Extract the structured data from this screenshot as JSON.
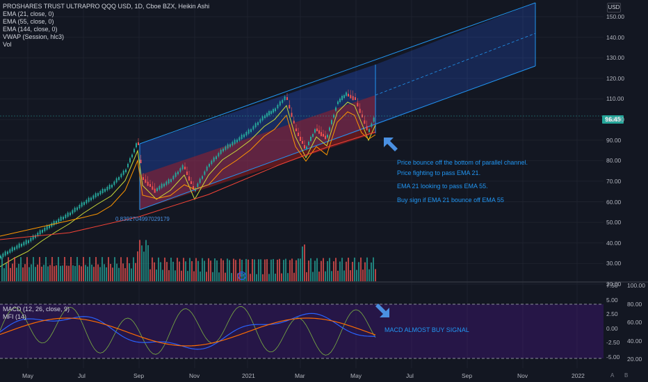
{
  "header": {
    "title": "PROSHARES TRUST ULTRAPRO QQQ USD, 1D, Cboe BZX, Heikin Ashi",
    "indicators": [
      "EMA (21, close, 0)",
      "EMA (55, close, 0)",
      "EMA (144, close, 0)",
      "VWAP (Session, hlc3)",
      "Vol"
    ],
    "currency": "USD"
  },
  "lower_pane": {
    "indicators": [
      "MACD (12, 26, close, 9)",
      "MFI (14)"
    ]
  },
  "price_axis": {
    "ticks": [
      "150.00",
      "140.00",
      "130.00",
      "120.00",
      "110.00",
      "100.00",
      "90.00",
      "80.00",
      "70.00",
      "60.00",
      "50.00",
      "40.00",
      "30.00",
      "20.00"
    ],
    "current_price": "96.45",
    "current_color": "#26a69a"
  },
  "macd_axis": {
    "ticks": [
      "7.50",
      "5.00",
      "2.50",
      "0.00",
      "-2.50",
      "-5.00"
    ]
  },
  "mfi_axis": {
    "ticks": [
      "100.00",
      "80.00",
      "60.00",
      "40.00",
      "20.00"
    ]
  },
  "time_axis": {
    "labels": [
      "May",
      "Jul",
      "Sep",
      "Nov",
      "2021",
      "Mar",
      "May",
      "Jul",
      "Sep",
      "Nov",
      "2022"
    ]
  },
  "annotations": {
    "fib_label": "0.8392704997029179",
    "notes": [
      "Price bounce off the bottom of parallel channel.",
      "Price fighting to pass EMA 21.",
      "EMA 21 looking to pass EMA 55.",
      "Buy sign if EMA 21 bounce off EMA 55"
    ],
    "macd_note": "MACD ALMOST BUY SIGNAL"
  },
  "controls": {
    "auto_label": "A",
    "log_label": "B"
  },
  "colors": {
    "background": "#131722",
    "up": "#26a69a",
    "down": "#ef5350",
    "channel_blue": "#2962ff",
    "channel_red": "#b71c1c",
    "macd_band": "#4a148c",
    "ema_orange": "#ff9800",
    "ema_yellow": "#cddc39",
    "ema_red": "#f44336"
  },
  "misc": {
    "event_badge": "D"
  }
}
